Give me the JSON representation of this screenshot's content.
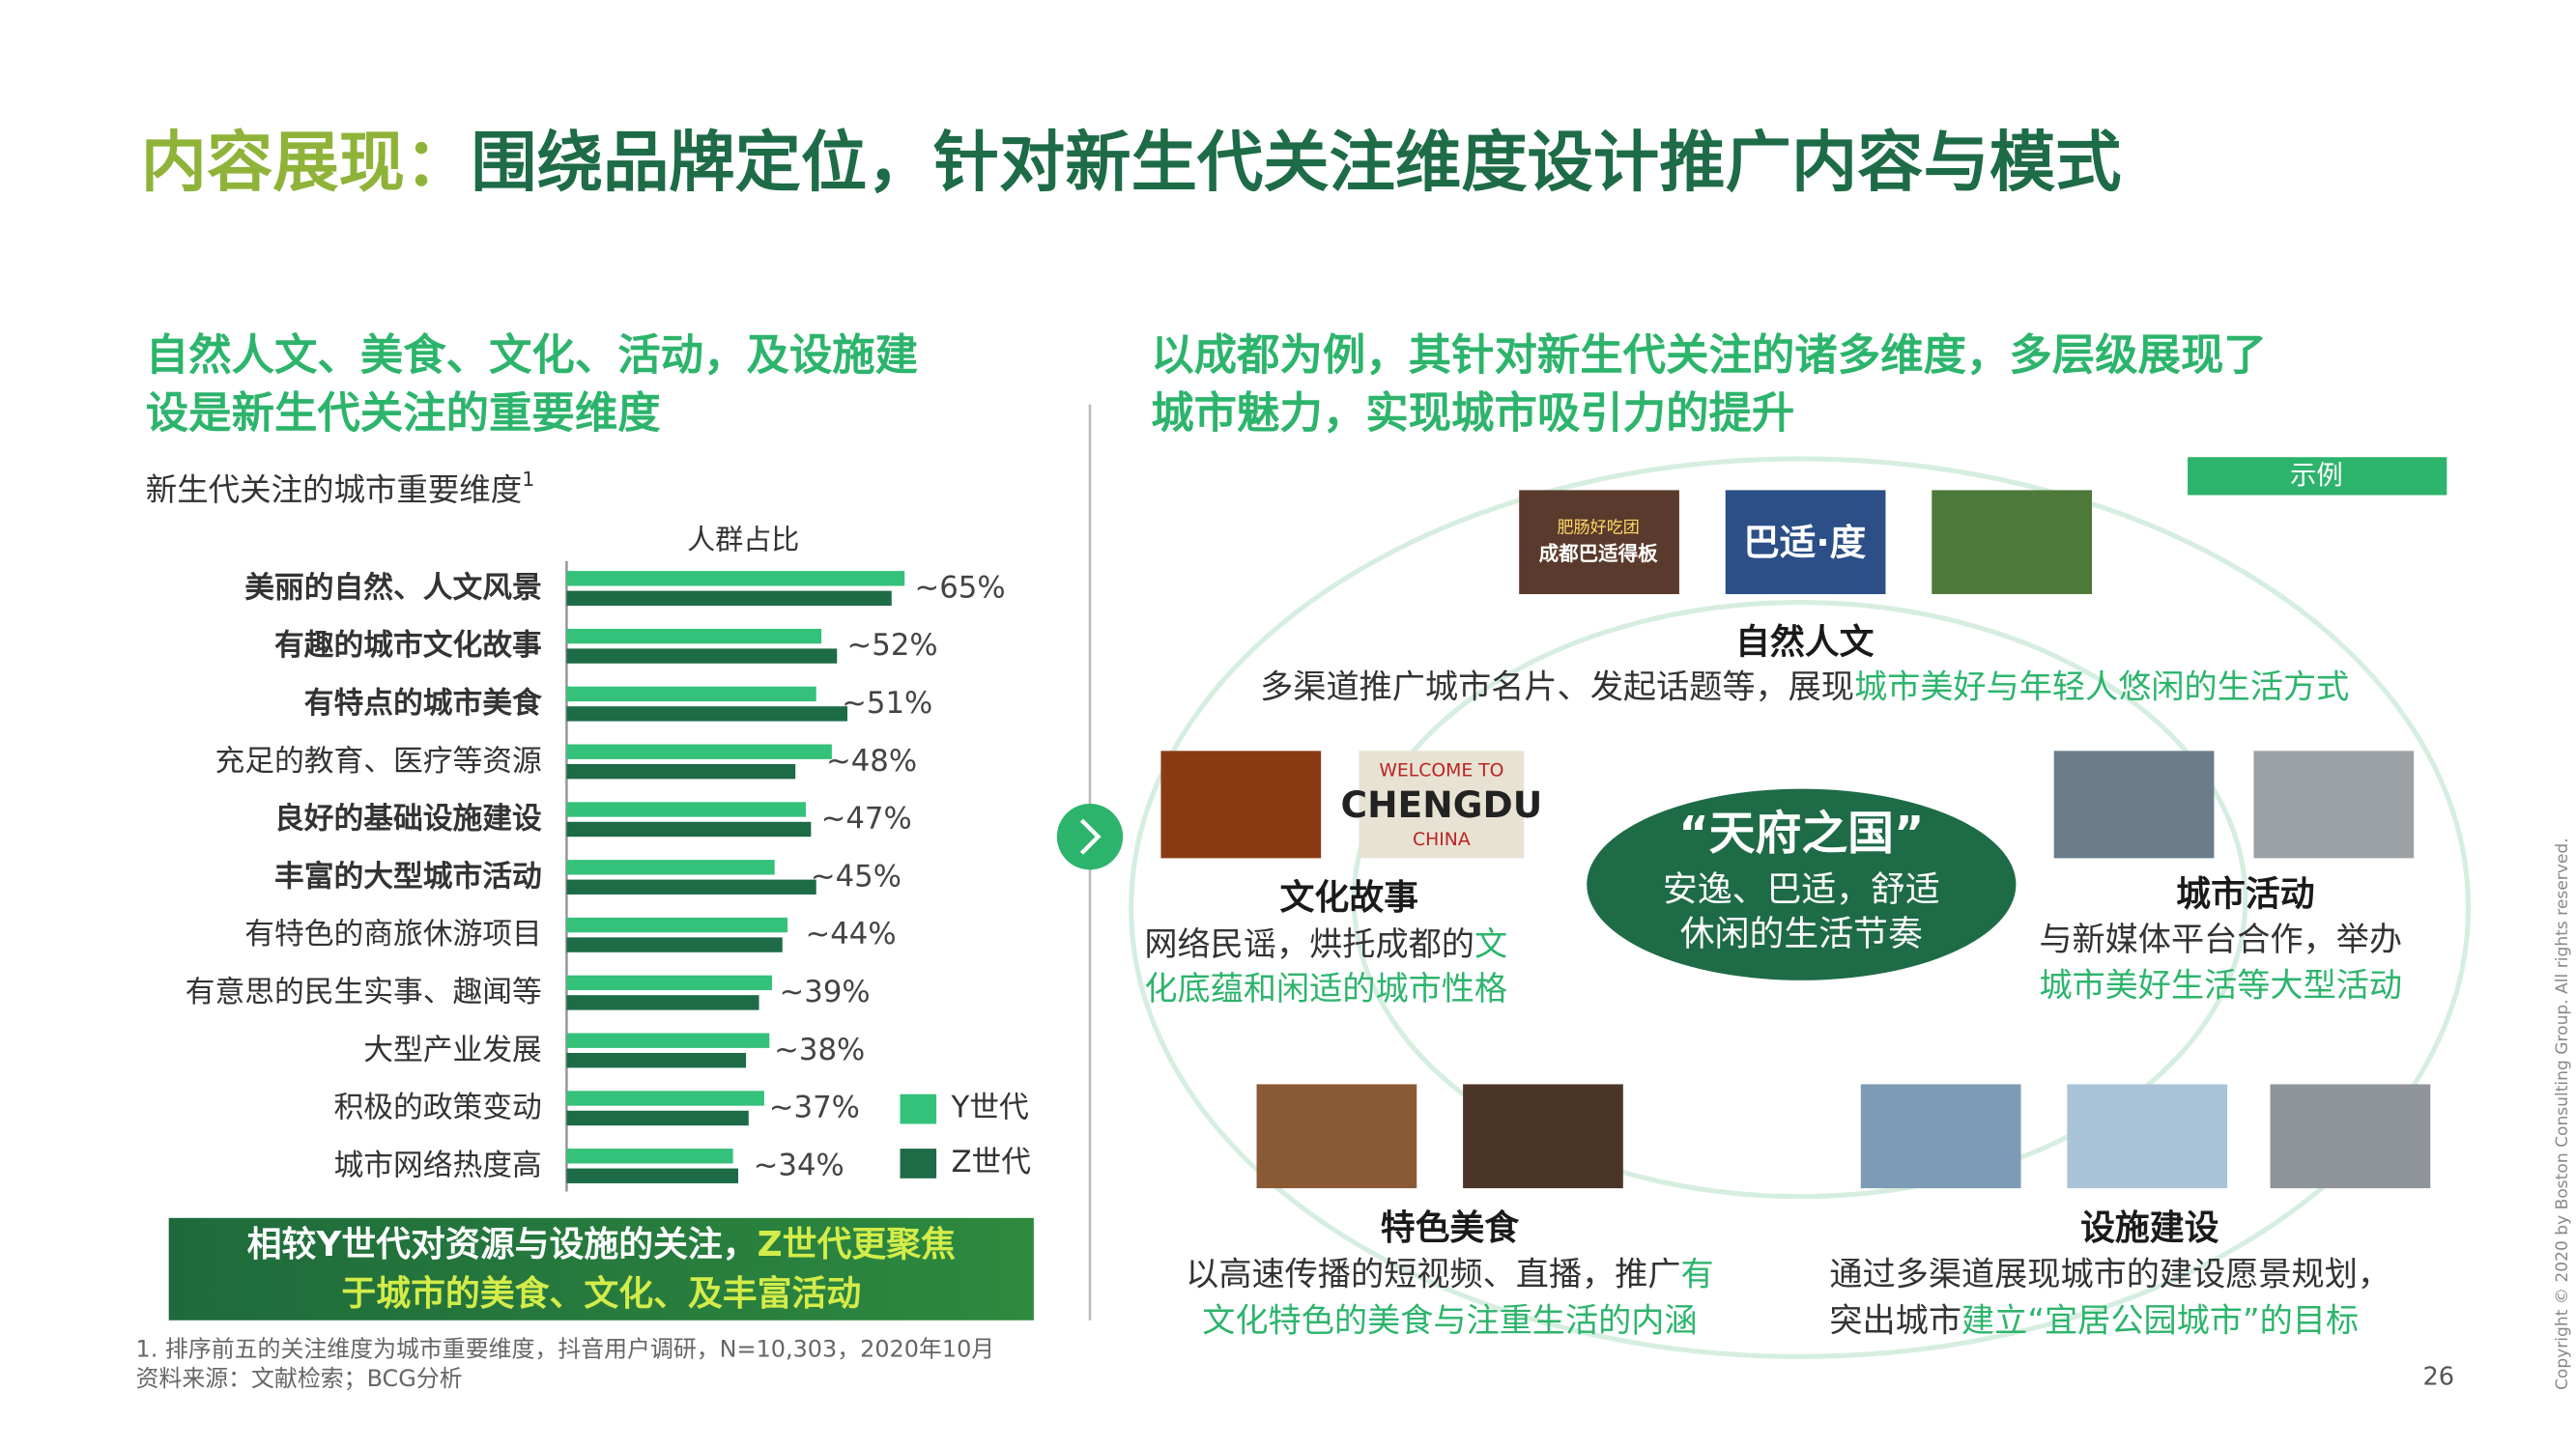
{
  "title": {
    "lead": "内容展现：",
    "rest": "围绕品牌定位，针对新生代关注维度设计推广内容与模式"
  },
  "left": {
    "heading": [
      "自然人文、美食、文化、活动，及设施建",
      "设是新生代关注的重要维度"
    ],
    "chart_subtitle": "新生代关注的城市重要维度",
    "footnote_mark": "1"
  },
  "chart_data": {
    "type": "bar",
    "orientation": "horizontal",
    "value_axis_label": "人群占比",
    "categories": [
      "美丽的自然、人文风景",
      "有趣的城市文化故事",
      "有特点的城市美食",
      "充足的教育、医疗等资源",
      "良好的基础设施建设",
      "丰富的大型城市活动",
      "有特色的商旅休游项目",
      "有意思的民生实事、趣闻等",
      "大型产业发展",
      "积极的政策变动",
      "城市网络热度高"
    ],
    "series": [
      {
        "name": "Y世代",
        "color": "#34c17a",
        "values": [
          65,
          49,
          48,
          51,
          46,
          40,
          42.5,
          39.5,
          39,
          38,
          32
        ]
      },
      {
        "name": "Z世代",
        "color": "#1d6b47",
        "values": [
          62.5,
          52,
          54,
          44,
          47,
          48,
          41.5,
          37,
          34.5,
          35,
          33
        ]
      }
    ],
    "values": [
      65,
      52,
      51,
      48,
      47,
      45,
      44,
      39,
      38,
      37,
      34
    ],
    "value_labels": [
      "~65%",
      "~52%",
      "~51%",
      "~48%",
      "~47%",
      "~45%",
      "~44%",
      "~39%",
      "~38%",
      "~37%",
      "~34%"
    ]
  },
  "callout": [
    [
      {
        "text": "相较Y世代对资源与设施的关注，",
        "highlight": false
      },
      {
        "text": "Z世代更聚焦",
        "highlight": true
      }
    ],
    [
      {
        "text": "于城市的美食、文化、及丰富活动",
        "highlight": true
      }
    ]
  ],
  "footnotes": [
    "1. 排序前五的关注维度为城市重要维度，抖音用户调研，N=10,303，2020年10月",
    "资料来源：文献检索；BCG分析"
  ],
  "right": {
    "heading": [
      "以成都为例，其针对新生代关注的诸多维度，多层级展现了",
      "城市魅力，实现城市吸引力的提升"
    ],
    "tag": "示例",
    "image_texts": [
      "肥肠好吃团",
      "成都巴适得板",
      "巴适·度",
      "WELCOME TO",
      "CHENGDU",
      "CHINA"
    ],
    "center": {
      "title": "“天府之国”",
      "lines": [
        "安逸、巴适，舒适",
        "休闲的生活节奏"
      ]
    },
    "blocks": [
      {
        "title": "自然人文",
        "lines": [
          [
            {
              "text": "多渠道推广城市名片、发起话题等，展现",
              "highlight": false
            },
            {
              "text": "城市美好与年轻人悠闲的生活方式",
              "highlight": true
            }
          ]
        ]
      },
      {
        "title": "文化故事",
        "lines": [
          [
            {
              "text": "网络民谣，烘托成都的",
              "highlight": false
            },
            {
              "text": "文",
              "highlight": true
            }
          ],
          [
            {
              "text": "化底蕴和闲适的城市性格",
              "highlight": true
            }
          ]
        ]
      },
      {
        "title": "城市活动",
        "lines": [
          [
            {
              "text": "与新媒体平台合作，举办",
              "highlight": false
            }
          ],
          [
            {
              "text": "城市美好生活等大型活动",
              "highlight": true
            }
          ]
        ]
      },
      {
        "title": "特色美食",
        "lines": [
          [
            {
              "text": "以高速传播的短视频、直播，推广",
              "highlight": false
            },
            {
              "text": "有",
              "highlight": true
            }
          ],
          [
            {
              "text": "文化特色的美食与注重生活的内涵",
              "highlight": true
            }
          ]
        ]
      },
      {
        "title": "设施建设",
        "lines": [
          [
            {
              "text": "通过多渠道展现城市的建设愿景规划，",
              "highlight": false
            }
          ],
          [
            {
              "text": "突出城市",
              "highlight": false
            },
            {
              "text": "建立“宜居公园城市”的目标",
              "highlight": true
            }
          ]
        ]
      }
    ]
  },
  "page_number": "26",
  "copyright": "Copyright © 2020 by Boston Consulting Group. All rights reserved."
}
